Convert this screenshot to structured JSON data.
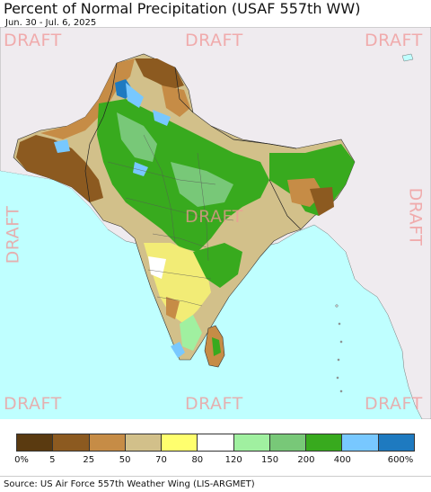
{
  "header": {
    "title": "Percent of Normal Precipitation (USAF 557th WW)",
    "date_range": "Jun. 30 - Jul. 6, 2025"
  },
  "watermark": {
    "text": "DRAFT"
  },
  "legend": {
    "colors": [
      "#5a3a10",
      "#8c5a20",
      "#c68c46",
      "#d2c08a",
      "#ffff6e",
      "#ffffff",
      "#a0f0a0",
      "#78c878",
      "#38aa1e",
      "#78c8ff",
      "#1e7ac0"
    ],
    "labels": [
      "0%",
      "5",
      "25",
      "50",
      "70",
      "80",
      "120",
      "150",
      "200",
      "400",
      "600%"
    ]
  },
  "footer": {
    "source": "Source: US Air Force 557th Weather Wing (LIS-ARGMET)"
  },
  "colors": {
    "ocean": "#bfffff",
    "land_outside": "#f0ecf0",
    "border": "#222222"
  }
}
